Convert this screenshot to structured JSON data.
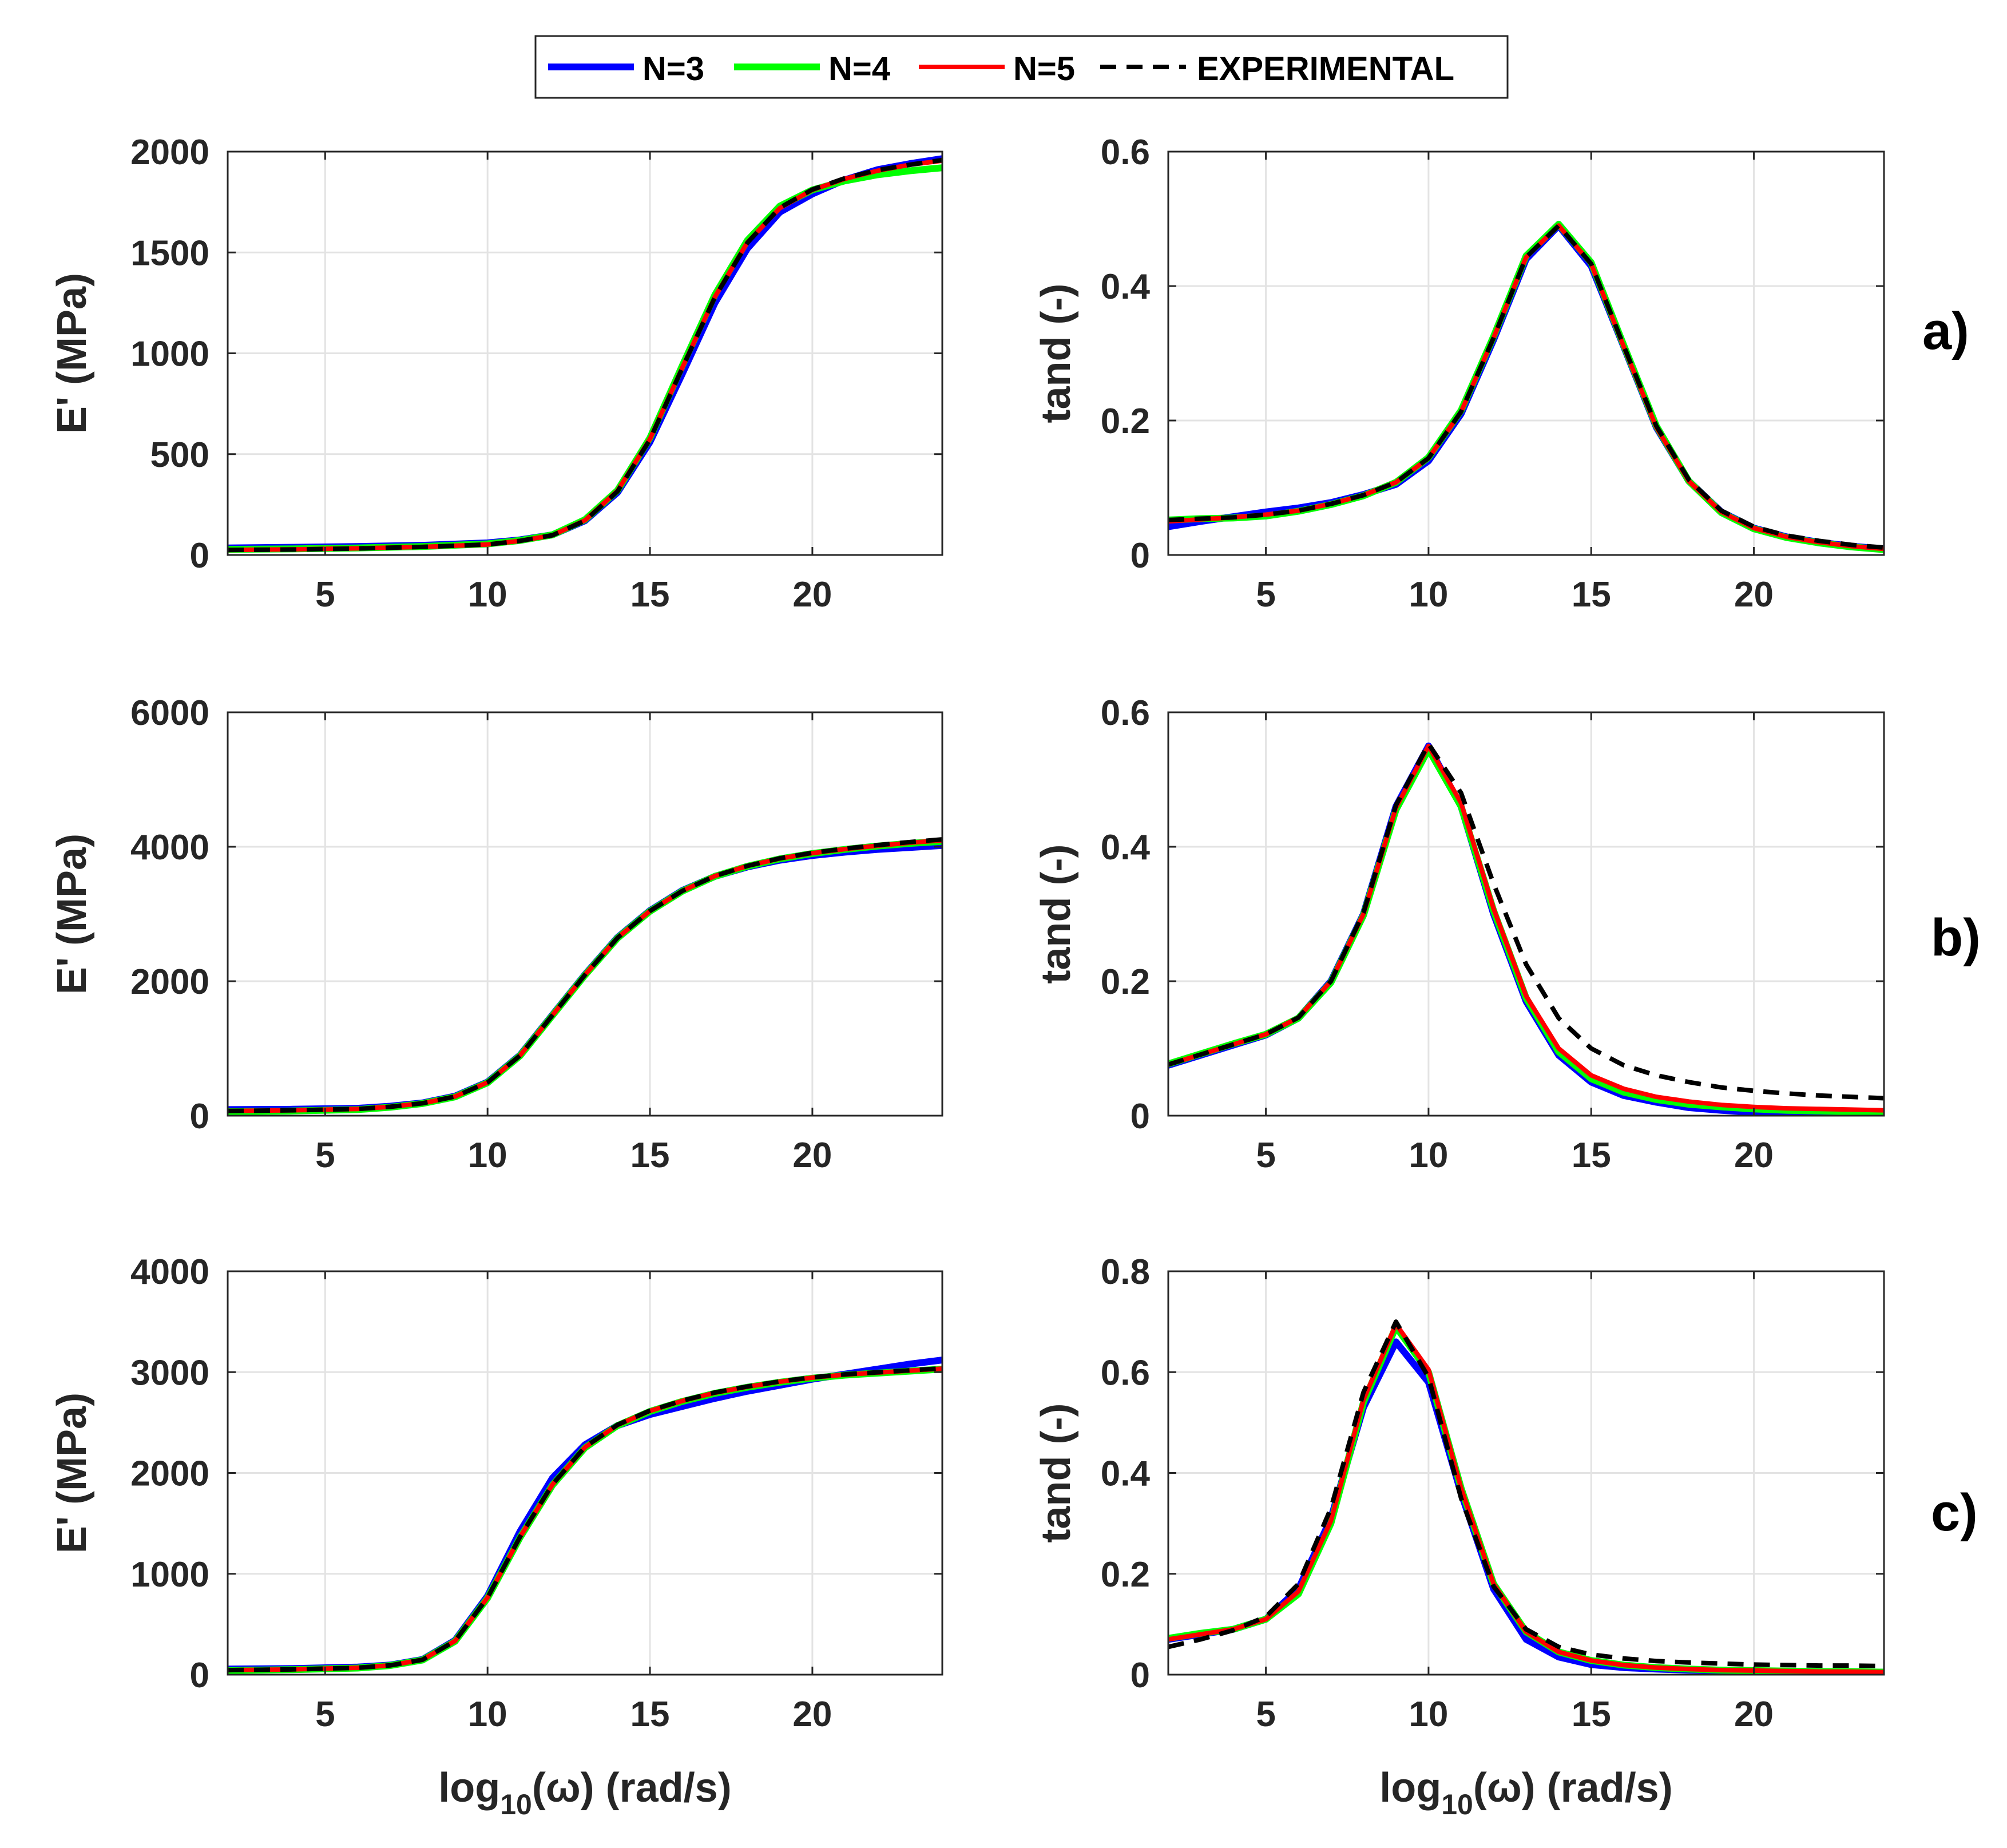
{
  "colors": {
    "n3": "#0000ff",
    "n4": "#00ff00",
    "n5": "#ff0000",
    "experimental": "#000000",
    "grid": "#e3e3e3",
    "axis": "#262626"
  },
  "legend": {
    "entries": [
      "N=3",
      "N=4",
      "N=5",
      "EXPERIMENTAL"
    ]
  },
  "panel_labels": [
    "a)",
    "b)",
    "c)"
  ],
  "chart_data": [
    {
      "id": "a-storage",
      "type": "line",
      "row": 0,
      "col": 0,
      "xlabel": "",
      "ylabel": "E' (MPa)",
      "xlim": [
        2,
        24
      ],
      "ylim": [
        0,
        2000
      ],
      "xticks": [
        "5",
        "10",
        "15",
        "20"
      ],
      "yticks": [
        "0",
        "500",
        "1000",
        "1500",
        "2000"
      ],
      "x": [
        2,
        4,
        6,
        8,
        10,
        11,
        12,
        13,
        14,
        15,
        16,
        17,
        18,
        19,
        20,
        21,
        22,
        23,
        24
      ],
      "series": [
        {
          "name": "N=3",
          "values": [
            35,
            38,
            42,
            48,
            60,
            75,
            100,
            170,
            310,
            560,
            900,
            1250,
            1520,
            1700,
            1790,
            1860,
            1910,
            1940,
            1965
          ]
        },
        {
          "name": "N=4",
          "values": [
            28,
            30,
            35,
            42,
            55,
            72,
            100,
            175,
            320,
            580,
            940,
            1290,
            1560,
            1730,
            1810,
            1855,
            1885,
            1905,
            1920
          ]
        },
        {
          "name": "N=5",
          "values": [
            25,
            28,
            33,
            40,
            52,
            70,
            98,
            172,
            318,
            575,
            930,
            1280,
            1550,
            1720,
            1810,
            1865,
            1905,
            1935,
            1955
          ]
        },
        {
          "name": "EXPERIMENTAL",
          "values": [
            25,
            27,
            32,
            40,
            52,
            70,
            98,
            170,
            315,
            572,
            928,
            1278,
            1548,
            1722,
            1812,
            1868,
            1908,
            1935,
            1958
          ]
        }
      ]
    },
    {
      "id": "a-tand",
      "type": "line",
      "row": 0,
      "col": 1,
      "xlabel": "",
      "ylabel": "tand (-)",
      "xlim": [
        2,
        24
      ],
      "ylim": [
        0,
        0.6
      ],
      "xticks": [
        "5",
        "10",
        "15",
        "20"
      ],
      "yticks": [
        "0",
        "0.2",
        "0.4",
        "0.6"
      ],
      "x": [
        2,
        3,
        4,
        5,
        6,
        7,
        8,
        9,
        10,
        11,
        12,
        13,
        14,
        15,
        16,
        17,
        18,
        19,
        20,
        21,
        22,
        23,
        24
      ],
      "series": [
        {
          "name": "N=3",
          "values": [
            0.042,
            0.05,
            0.057,
            0.064,
            0.07,
            0.078,
            0.09,
            0.105,
            0.14,
            0.21,
            0.32,
            0.44,
            0.49,
            0.43,
            0.31,
            0.19,
            0.11,
            0.064,
            0.04,
            0.027,
            0.019,
            0.013,
            0.009
          ]
        },
        {
          "name": "N=4",
          "values": [
            0.052,
            0.054,
            0.055,
            0.058,
            0.065,
            0.075,
            0.088,
            0.108,
            0.145,
            0.215,
            0.325,
            0.445,
            0.492,
            0.435,
            0.312,
            0.192,
            0.11,
            0.063,
            0.039,
            0.026,
            0.018,
            0.012,
            0.008
          ]
        },
        {
          "name": "N=5",
          "values": [
            0.05,
            0.053,
            0.056,
            0.06,
            0.066,
            0.076,
            0.089,
            0.108,
            0.144,
            0.213,
            0.323,
            0.443,
            0.49,
            0.433,
            0.31,
            0.19,
            0.11,
            0.064,
            0.04,
            0.027,
            0.019,
            0.013,
            0.009
          ]
        },
        {
          "name": "EXPERIMENTAL",
          "values": [
            0.052,
            0.054,
            0.056,
            0.06,
            0.066,
            0.076,
            0.089,
            0.108,
            0.144,
            0.213,
            0.323,
            0.443,
            0.49,
            0.433,
            0.311,
            0.192,
            0.112,
            0.066,
            0.042,
            0.029,
            0.021,
            0.015,
            0.011
          ]
        }
      ]
    },
    {
      "id": "b-storage",
      "type": "line",
      "row": 1,
      "col": 0,
      "xlabel": "",
      "ylabel": "E' (MPa)",
      "xlim": [
        2,
        24
      ],
      "ylim": [
        0,
        6000
      ],
      "xticks": [
        "5",
        "10",
        "15",
        "20"
      ],
      "yticks": [
        "0",
        "2000",
        "4000",
        "6000"
      ],
      "x": [
        2,
        4,
        6,
        7,
        8,
        9,
        10,
        11,
        12,
        13,
        14,
        15,
        16,
        17,
        18,
        19,
        20,
        21,
        22,
        23,
        24
      ],
      "series": [
        {
          "name": "N=3",
          "values": [
            90,
            95,
            110,
            140,
            190,
            290,
            500,
            900,
            1500,
            2100,
            2650,
            3050,
            3350,
            3560,
            3700,
            3800,
            3870,
            3920,
            3960,
            3990,
            4020
          ]
        },
        {
          "name": "N=4",
          "values": [
            60,
            70,
            90,
            125,
            180,
            280,
            490,
            890,
            1490,
            2090,
            2640,
            3040,
            3340,
            3560,
            3710,
            3820,
            3900,
            3960,
            4010,
            4050,
            4080
          ]
        },
        {
          "name": "N=5",
          "values": [
            70,
            80,
            100,
            132,
            185,
            285,
            495,
            895,
            1495,
            2095,
            2645,
            3045,
            3345,
            3565,
            3715,
            3825,
            3905,
            3965,
            4015,
            4060,
            4095
          ]
        },
        {
          "name": "EXPERIMENTAL",
          "values": [
            70,
            80,
            100,
            132,
            185,
            285,
            495,
            895,
            1495,
            2095,
            2645,
            3045,
            3345,
            3565,
            3715,
            3828,
            3910,
            3972,
            4025,
            4070,
            4110
          ]
        }
      ]
    },
    {
      "id": "b-tand",
      "type": "line",
      "row": 1,
      "col": 1,
      "xlabel": "",
      "ylabel": "tand (-)",
      "xlim": [
        2,
        24
      ],
      "ylim": [
        0,
        0.6
      ],
      "xticks": [
        "5",
        "10",
        "15",
        "20"
      ],
      "yticks": [
        "0",
        "0.2",
        "0.4",
        "0.6"
      ],
      "x": [
        2,
        3,
        4,
        5,
        6,
        7,
        8,
        9,
        10,
        11,
        12,
        13,
        14,
        15,
        16,
        17,
        18,
        19,
        20,
        21,
        22,
        23,
        24
      ],
      "series": [
        {
          "name": "N=3",
          "values": [
            0.075,
            0.09,
            0.105,
            0.12,
            0.145,
            0.2,
            0.3,
            0.46,
            0.55,
            0.46,
            0.3,
            0.17,
            0.09,
            0.05,
            0.03,
            0.02,
            0.012,
            0.008,
            0.005,
            0.003,
            0.002,
            0.001,
            0.0
          ]
        },
        {
          "name": "N=4",
          "values": [
            0.077,
            0.092,
            0.107,
            0.121,
            0.145,
            0.198,
            0.298,
            0.455,
            0.545,
            0.46,
            0.305,
            0.175,
            0.095,
            0.055,
            0.035,
            0.024,
            0.017,
            0.013,
            0.01,
            0.008,
            0.007,
            0.006,
            0.005
          ]
        },
        {
          "name": "N=5",
          "values": [
            0.076,
            0.091,
            0.106,
            0.121,
            0.146,
            0.2,
            0.3,
            0.458,
            0.55,
            0.465,
            0.308,
            0.178,
            0.1,
            0.06,
            0.04,
            0.028,
            0.021,
            0.016,
            0.013,
            0.011,
            0.01,
            0.009,
            0.008
          ]
        },
        {
          "name": "EXPERIMENTAL",
          "values": [
            0.076,
            0.091,
            0.106,
            0.121,
            0.146,
            0.2,
            0.302,
            0.462,
            0.553,
            0.48,
            0.345,
            0.225,
            0.145,
            0.1,
            0.075,
            0.06,
            0.05,
            0.042,
            0.037,
            0.033,
            0.03,
            0.028,
            0.026
          ]
        }
      ]
    },
    {
      "id": "c-storage",
      "type": "line",
      "row": 2,
      "col": 0,
      "xlabel": "log10(ω) (rad/s)",
      "ylabel": "E' (MPa)",
      "xlim": [
        2,
        24
      ],
      "ylim": [
        0,
        4000
      ],
      "xticks": [
        "5",
        "10",
        "15",
        "20"
      ],
      "yticks": [
        "0",
        "1000",
        "2000",
        "3000",
        "4000"
      ],
      "x": [
        2,
        4,
        6,
        7,
        8,
        9,
        10,
        11,
        12,
        13,
        14,
        15,
        16,
        17,
        18,
        19,
        20,
        21,
        22,
        23,
        24
      ],
      "series": [
        {
          "name": "N=3",
          "values": [
            55,
            60,
            75,
            95,
            150,
            340,
            780,
            1420,
            1950,
            2280,
            2470,
            2580,
            2660,
            2740,
            2810,
            2870,
            2930,
            2980,
            3030,
            3080,
            3120
          ]
        },
        {
          "name": "N=4",
          "values": [
            40,
            50,
            65,
            90,
            145,
            330,
            760,
            1360,
            1880,
            2250,
            2470,
            2610,
            2710,
            2790,
            2850,
            2900,
            2940,
            2970,
            2990,
            3010,
            3030
          ]
        },
        {
          "name": "N=5",
          "values": [
            45,
            52,
            68,
            92,
            148,
            335,
            765,
            1365,
            1885,
            2255,
            2475,
            2615,
            2715,
            2795,
            2855,
            2905,
            2945,
            2975,
            2995,
            3015,
            3035
          ]
        },
        {
          "name": "EXPERIMENTAL",
          "values": [
            45,
            52,
            68,
            92,
            148,
            335,
            765,
            1368,
            1888,
            2258,
            2478,
            2618,
            2718,
            2798,
            2858,
            2908,
            2948,
            2978,
            2998,
            3018,
            3038
          ]
        }
      ]
    },
    {
      "id": "c-tand",
      "type": "line",
      "row": 2,
      "col": 1,
      "xlabel": "log10(ω) (rad/s)",
      "ylabel": "tand (-)",
      "xlim": [
        2,
        24
      ],
      "ylim": [
        0,
        0.8
      ],
      "xticks": [
        "5",
        "10",
        "15",
        "20"
      ],
      "yticks": [
        "0",
        "0.2",
        "0.4",
        "0.6",
        "0.8"
      ],
      "x": [
        2,
        3,
        4,
        5,
        6,
        7,
        8,
        9,
        10,
        11,
        12,
        13,
        14,
        15,
        16,
        17,
        18,
        19,
        20,
        21,
        22,
        23,
        24
      ],
      "series": [
        {
          "name": "N=3",
          "values": [
            0.07,
            0.08,
            0.09,
            0.11,
            0.17,
            0.31,
            0.53,
            0.66,
            0.58,
            0.36,
            0.17,
            0.07,
            0.035,
            0.02,
            0.014,
            0.011,
            0.009,
            0.008,
            0.007,
            0.006,
            0.006,
            0.005,
            0.005
          ]
        },
        {
          "name": "N=4",
          "values": [
            0.072,
            0.082,
            0.09,
            0.11,
            0.16,
            0.3,
            0.54,
            0.69,
            0.6,
            0.37,
            0.18,
            0.085,
            0.045,
            0.028,
            0.019,
            0.014,
            0.011,
            0.009,
            0.008,
            0.007,
            0.006,
            0.006,
            0.005
          ]
        },
        {
          "name": "N=5",
          "values": [
            0.07,
            0.08,
            0.09,
            0.11,
            0.165,
            0.305,
            0.545,
            0.695,
            0.605,
            0.37,
            0.18,
            0.085,
            0.045,
            0.028,
            0.019,
            0.014,
            0.011,
            0.009,
            0.008,
            0.007,
            0.006,
            0.006,
            0.005
          ]
        },
        {
          "name": "EXPERIMENTAL",
          "values": [
            0.055,
            0.07,
            0.088,
            0.115,
            0.18,
            0.33,
            0.56,
            0.7,
            0.59,
            0.35,
            0.175,
            0.09,
            0.055,
            0.04,
            0.032,
            0.027,
            0.024,
            0.022,
            0.02,
            0.019,
            0.018,
            0.018,
            0.017
          ]
        }
      ]
    }
  ]
}
